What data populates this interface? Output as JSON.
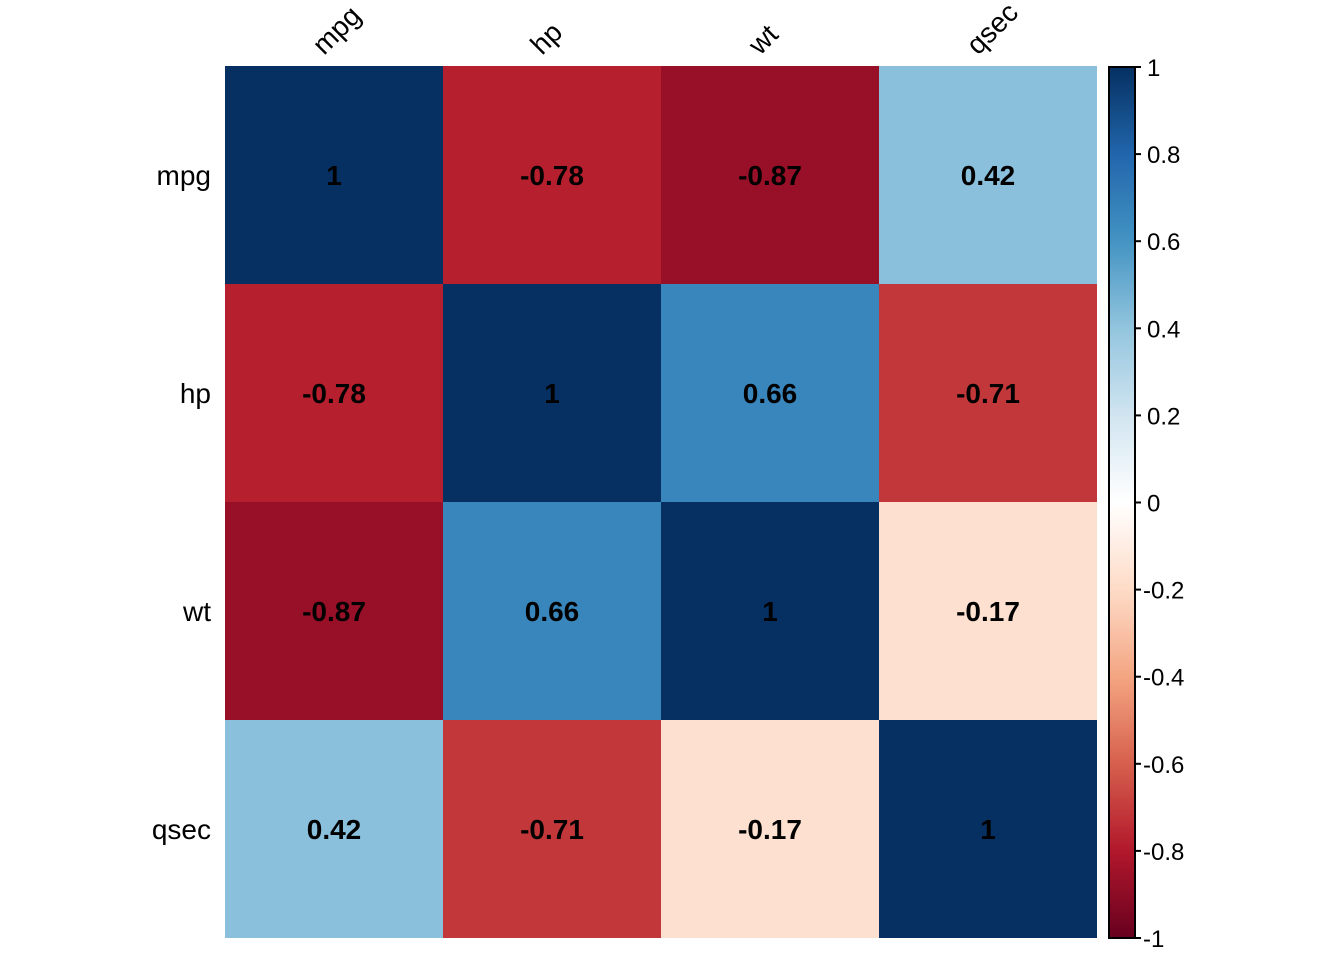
{
  "chart_data": {
    "type": "heatmap",
    "title": "",
    "variables": [
      "mpg",
      "hp",
      "wt",
      "qsec"
    ],
    "row_labels": [
      "mpg",
      "hp",
      "wt",
      "qsec"
    ],
    "col_labels": [
      "mpg",
      "hp",
      "wt",
      "qsec"
    ],
    "values": [
      [
        1,
        -0.78,
        -0.87,
        0.42
      ],
      [
        -0.78,
        1,
        0.66,
        -0.71
      ],
      [
        -0.87,
        0.66,
        1,
        -0.17
      ],
      [
        0.42,
        -0.71,
        -0.17,
        1
      ]
    ],
    "value_labels": [
      [
        "1",
        "-0.78",
        "-0.87",
        "0.42"
      ],
      [
        "-0.78",
        "1",
        "0.66",
        "-0.71"
      ],
      [
        "-0.87",
        "0.66",
        "1",
        "-0.17"
      ],
      [
        "0.42",
        "-0.71",
        "-0.17",
        "1"
      ]
    ],
    "colorbar": {
      "range": [
        -1,
        1
      ],
      "ticks": [
        1,
        0.8,
        0.6,
        0.4,
        0.2,
        0,
        -0.2,
        -0.4,
        -0.6,
        -0.8,
        -1
      ],
      "tick_labels": [
        "1",
        "0.8",
        "0.6",
        "0.4",
        "0.2",
        "0",
        "-0.2",
        "-0.4",
        "-0.6",
        "-0.8",
        "-1"
      ],
      "placement": "right"
    },
    "palette": {
      "stops": [
        {
          "v": -1,
          "color": "#67001F"
        },
        {
          "v": -0.8,
          "color": "#B2182B"
        },
        {
          "v": -0.6,
          "color": "#D6604D"
        },
        {
          "v": -0.4,
          "color": "#F4A582"
        },
        {
          "v": -0.2,
          "color": "#FDDBC7"
        },
        {
          "v": 0,
          "color": "#FFFFFF"
        },
        {
          "v": 0.2,
          "color": "#D1E5F0"
        },
        {
          "v": 0.4,
          "color": "#92C5DE"
        },
        {
          "v": 0.6,
          "color": "#4393C3"
        },
        {
          "v": 0.8,
          "color": "#2166AC"
        },
        {
          "v": 1,
          "color": "#053061"
        }
      ]
    }
  }
}
